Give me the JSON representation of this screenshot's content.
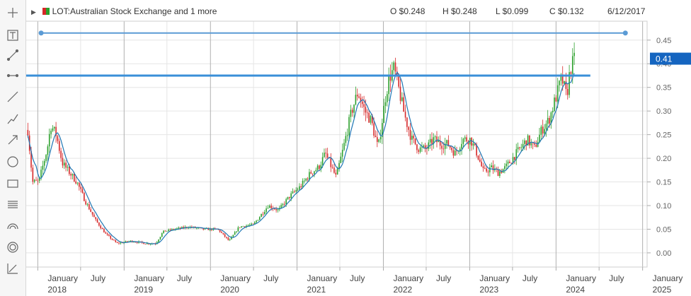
{
  "header": {
    "symbol_label": "LOT:Australian Stock Exchange and 1 more",
    "open": "O $0.248",
    "high": "H $0.248",
    "low": "L $0.099",
    "close": "C $0.132",
    "date": "6/12/2017",
    "series_colors": [
      "#d62728",
      "#2ca02c"
    ]
  },
  "toolbar": {
    "tools": [
      "crosshair-icon",
      "text-icon",
      "trendline-icon",
      "horizontal-segment-icon",
      "ray-icon",
      "polyline-icon",
      "arrow-icon",
      "circle-icon",
      "rectangle-icon",
      "fibonacci-icon",
      "arc-icon",
      "target-icon",
      "scale-icon"
    ]
  },
  "chart_data": {
    "type": "candlestick",
    "ylim": [
      -0.03,
      0.49
    ],
    "yticks": [
      "0.45",
      "0.40",
      "0.35",
      "0.30",
      "0.25",
      "0.20",
      "0.15",
      "0.10",
      "0.05",
      "0.00"
    ],
    "ytick_values": [
      0.45,
      0.4,
      0.35,
      0.3,
      0.25,
      0.2,
      0.15,
      0.1,
      0.05,
      0.0
    ],
    "xlim": [
      "2017-11-10",
      "2025-01-20"
    ],
    "x_ticks": [
      {
        "date": "2018-01-01",
        "label": "January",
        "year": "2018"
      },
      {
        "date": "2018-07-01",
        "label": "July",
        "year": ""
      },
      {
        "date": "2019-01-01",
        "label": "January",
        "year": "2019"
      },
      {
        "date": "2019-07-01",
        "label": "July",
        "year": ""
      },
      {
        "date": "2020-01-01",
        "label": "January",
        "year": "2020"
      },
      {
        "date": "2020-07-01",
        "label": "July",
        "year": ""
      },
      {
        "date": "2021-01-01",
        "label": "January",
        "year": "2021"
      },
      {
        "date": "2021-07-01",
        "label": "July",
        "year": ""
      },
      {
        "date": "2022-01-01",
        "label": "January",
        "year": "2022"
      },
      {
        "date": "2022-07-01",
        "label": "July",
        "year": ""
      },
      {
        "date": "2023-01-01",
        "label": "January",
        "year": "2023"
      },
      {
        "date": "2023-07-01",
        "label": "July",
        "year": ""
      },
      {
        "date": "2024-01-01",
        "label": "January",
        "year": "2024"
      },
      {
        "date": "2024-07-01",
        "label": "July",
        "year": ""
      },
      {
        "date": "2025-01-01",
        "label": "January",
        "year": "2025"
      }
    ],
    "last_price_label": "0.41",
    "last_price": 0.41,
    "price_path": [
      [
        "2017-11-20",
        0.26
      ],
      [
        "2017-12-10",
        0.15
      ],
      [
        "2018-01-05",
        0.15
      ],
      [
        "2018-02-10",
        0.22
      ],
      [
        "2018-02-25",
        0.27
      ],
      [
        "2018-03-20",
        0.25
      ],
      [
        "2018-04-15",
        0.19
      ],
      [
        "2018-05-15",
        0.17
      ],
      [
        "2018-06-15",
        0.15
      ],
      [
        "2018-07-20",
        0.11
      ],
      [
        "2018-09-01",
        0.07
      ],
      [
        "2018-10-15",
        0.04
      ],
      [
        "2018-12-01",
        0.02
      ],
      [
        "2019-02-01",
        0.025
      ],
      [
        "2019-04-01",
        0.02
      ],
      [
        "2019-05-15",
        0.02
      ],
      [
        "2019-06-15",
        0.045
      ],
      [
        "2019-08-01",
        0.05
      ],
      [
        "2019-10-01",
        0.055
      ],
      [
        "2019-12-01",
        0.05
      ],
      [
        "2020-02-01",
        0.05
      ],
      [
        "2020-03-20",
        0.025
      ],
      [
        "2020-05-01",
        0.055
      ],
      [
        "2020-07-01",
        0.06
      ],
      [
        "2020-09-01",
        0.1
      ],
      [
        "2020-10-15",
        0.09
      ],
      [
        "2020-12-01",
        0.12
      ],
      [
        "2021-01-15",
        0.14
      ],
      [
        "2021-03-01",
        0.17
      ],
      [
        "2021-04-01",
        0.18
      ],
      [
        "2021-05-01",
        0.21
      ],
      [
        "2021-06-15",
        0.16
      ],
      [
        "2021-07-15",
        0.22
      ],
      [
        "2021-08-20",
        0.3
      ],
      [
        "2021-09-15",
        0.34
      ],
      [
        "2021-10-15",
        0.3
      ],
      [
        "2021-11-10",
        0.28
      ],
      [
        "2021-12-10",
        0.22
      ],
      [
        "2022-01-10",
        0.33
      ],
      [
        "2022-01-25",
        0.37
      ],
      [
        "2022-02-15",
        0.39
      ],
      [
        "2022-03-10",
        0.34
      ],
      [
        "2022-04-01",
        0.29
      ],
      [
        "2022-05-01",
        0.24
      ],
      [
        "2022-06-01",
        0.22
      ],
      [
        "2022-07-01",
        0.22
      ],
      [
        "2022-08-01",
        0.24
      ],
      [
        "2022-09-01",
        0.23
      ],
      [
        "2022-10-01",
        0.23
      ],
      [
        "2022-11-01",
        0.21
      ],
      [
        "2022-12-01",
        0.24
      ],
      [
        "2023-01-05",
        0.24
      ],
      [
        "2023-02-01",
        0.21
      ],
      [
        "2023-03-01",
        0.17
      ],
      [
        "2023-04-01",
        0.18
      ],
      [
        "2023-05-01",
        0.17
      ],
      [
        "2023-06-01",
        0.18
      ],
      [
        "2023-07-01",
        0.2
      ],
      [
        "2023-08-01",
        0.22
      ],
      [
        "2023-09-01",
        0.24
      ],
      [
        "2023-10-01",
        0.22
      ],
      [
        "2023-11-01",
        0.26
      ],
      [
        "2023-12-01",
        0.28
      ],
      [
        "2024-01-01",
        0.33
      ],
      [
        "2024-01-25",
        0.37
      ],
      [
        "2024-02-15",
        0.33
      ],
      [
        "2024-03-01",
        0.39
      ],
      [
        "2024-03-20",
        0.41
      ]
    ],
    "drawings": [
      {
        "type": "segment",
        "from": [
          "2018-01-15",
          0.465
        ],
        "to": [
          "2024-10-20",
          0.465
        ],
        "color": "#5b9bd5"
      },
      {
        "type": "horizontal-ray",
        "from": [
          "2017-11-10",
          0.375
        ],
        "to": [
          "2024-05-25",
          0.375
        ],
        "color": "#3a8fd8"
      }
    ],
    "colors": {
      "up": "#2ca02c",
      "down": "#d62728",
      "ma": "#1f77b4",
      "grid": "#e5e5e5"
    }
  }
}
